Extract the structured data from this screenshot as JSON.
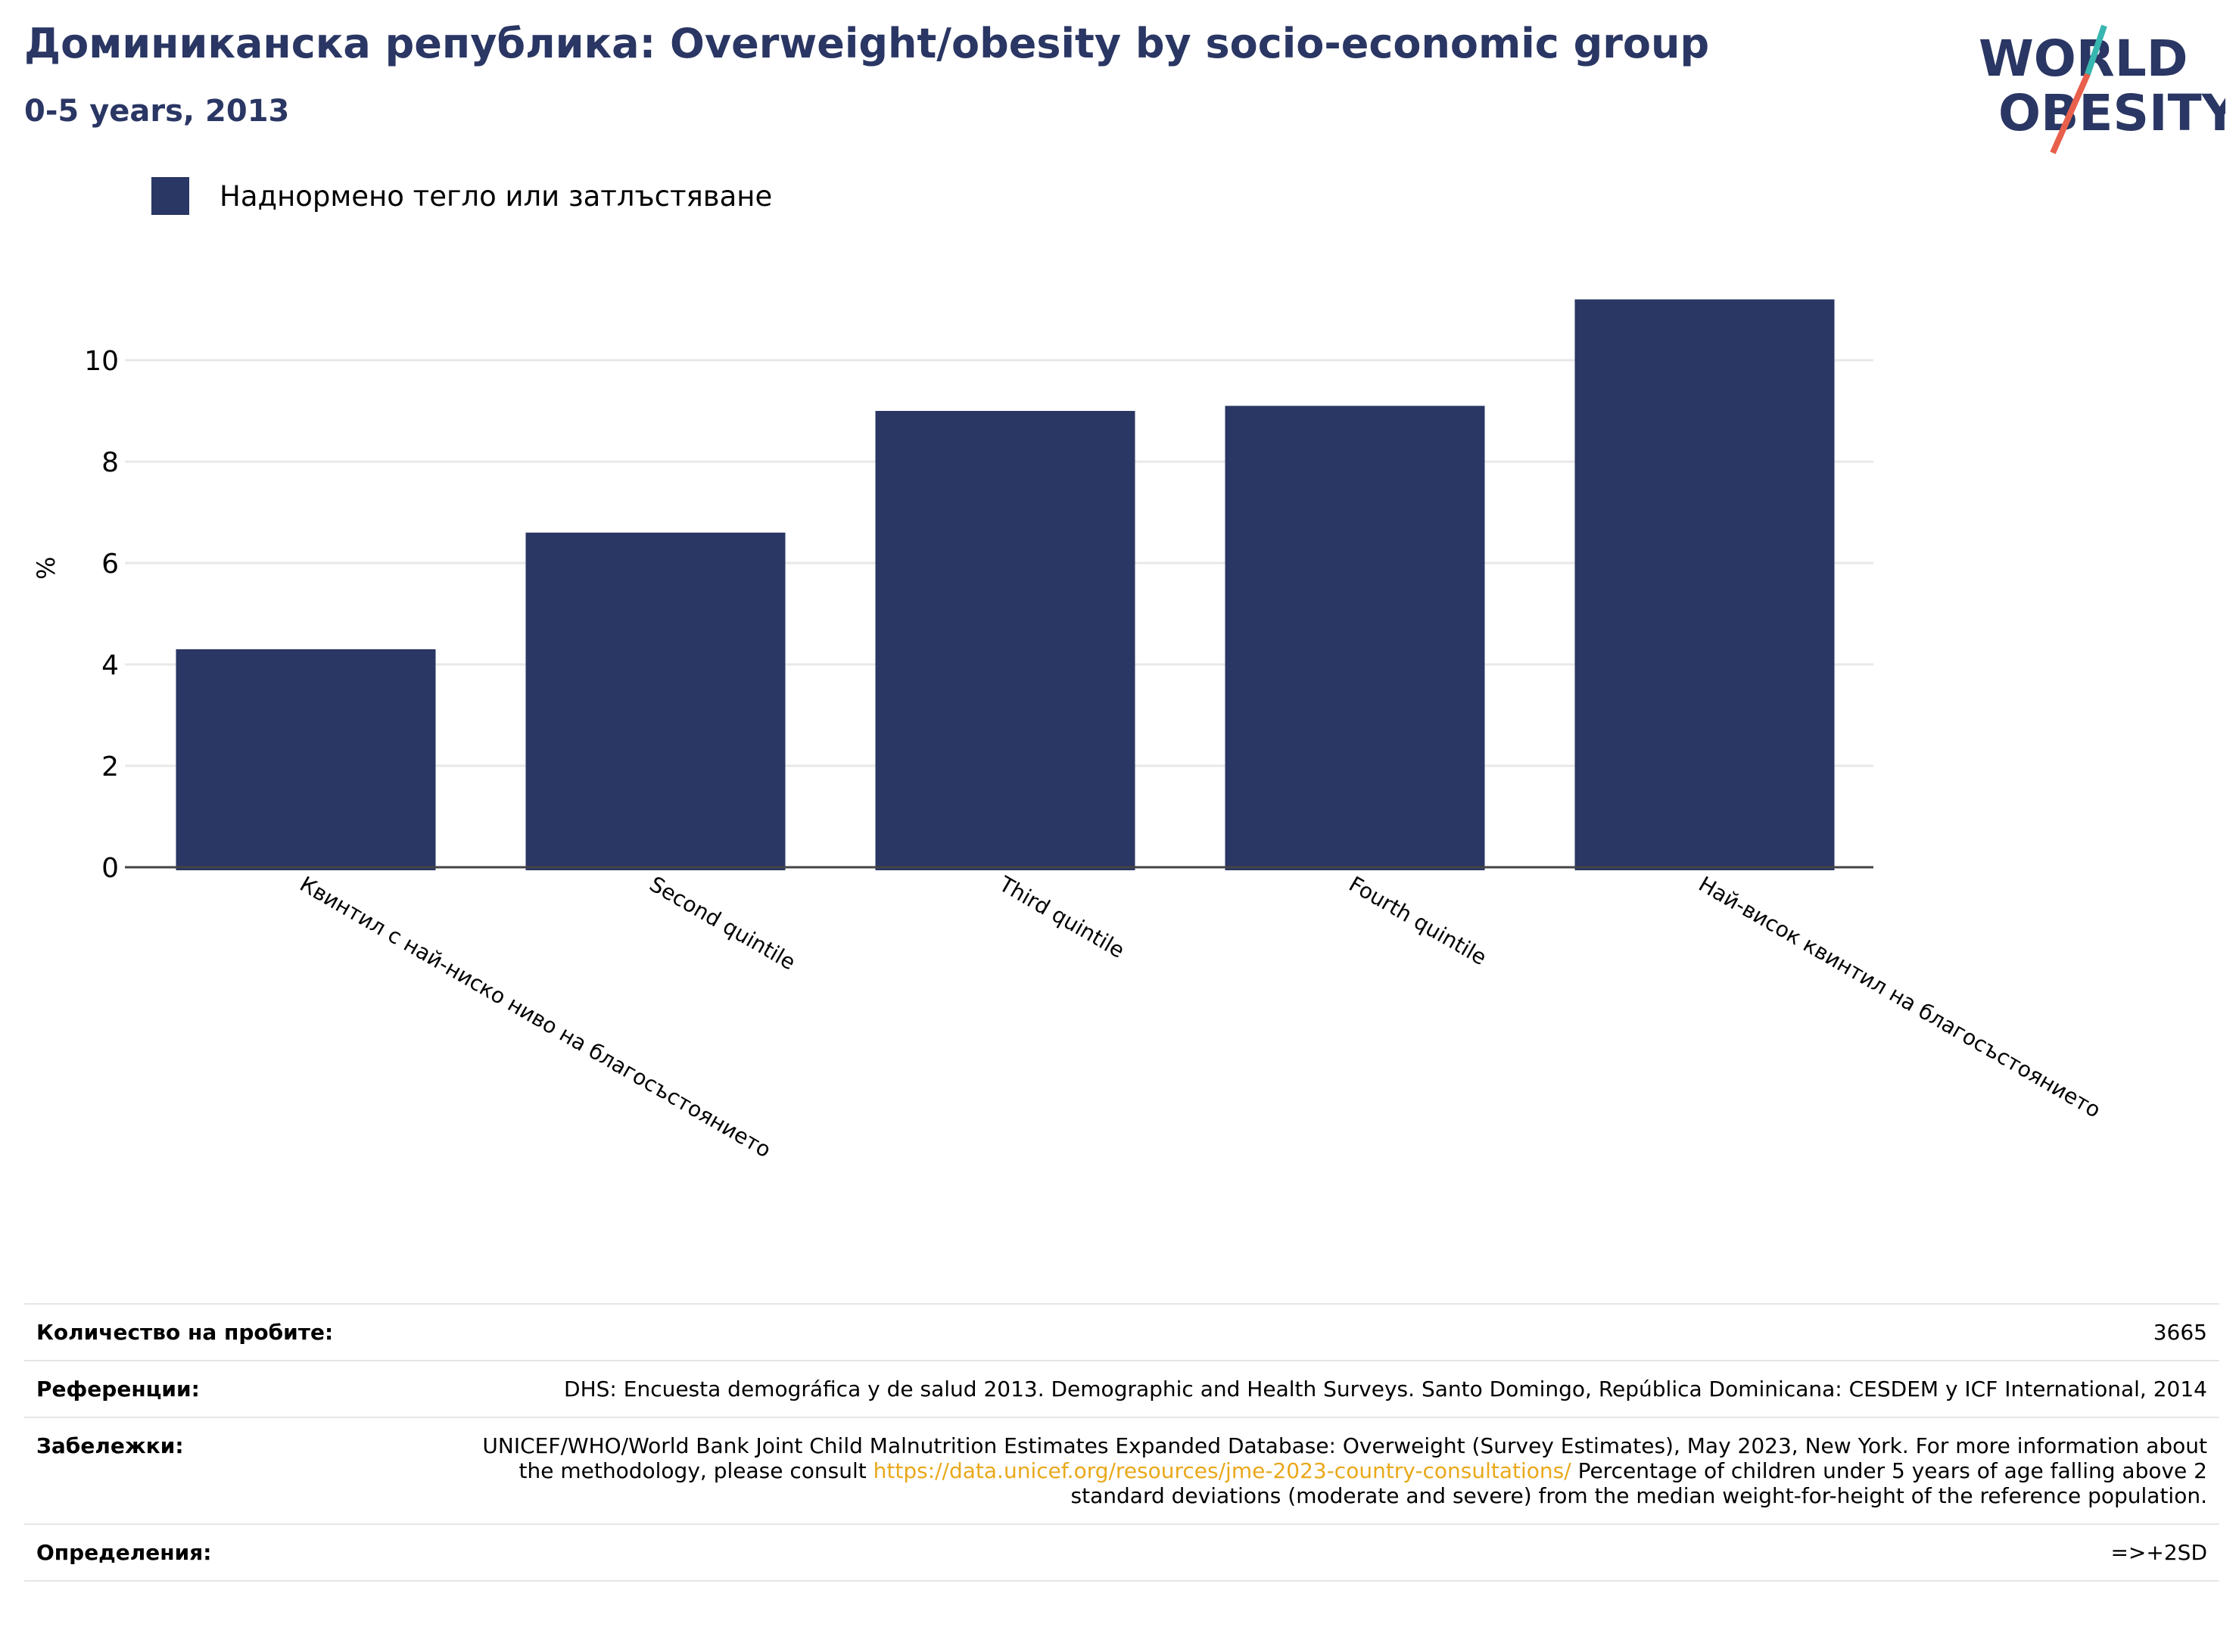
{
  "header": {
    "title": "Доминиканска република: Overweight/obesity by socio-economic group",
    "subtitle": "0-5 years, 2013"
  },
  "logo": {
    "line1": "WORLD",
    "line2": "OBESITY",
    "colors": {
      "text": "#2a3663",
      "slash_top": "#38b6b0",
      "slash_bottom": "#e8604c"
    }
  },
  "legend": {
    "label": "Наднормено тегло или затлъстяване",
    "color": "#2a3663"
  },
  "chart_data": {
    "type": "bar",
    "categories": [
      "Квинтил с най-ниско ниво на благосъстоянието",
      "Second quintile",
      "Third quintile",
      "Fourth quintile",
      "Най-висок квинтил на благосъстоянието"
    ],
    "series": [
      {
        "name": "Наднормено тегло или затлъстяване",
        "values": [
          4.3,
          6.6,
          9.0,
          9.1,
          11.2
        ]
      }
    ],
    "ylabel": "%",
    "xlabel": "",
    "yticks": [
      0,
      2,
      4,
      6,
      8,
      10
    ],
    "ylim": [
      0,
      11.2
    ],
    "grid": true,
    "bar_color": "#2a3663",
    "legend_position": "top-left"
  },
  "info": {
    "rows": [
      {
        "label": "Количество на пробите:",
        "value": "3665"
      },
      {
        "label": "Референции:",
        "value": "DHS: Encuesta demográfica y de salud 2013. Demographic and Health Surveys. Santo Domingo, República Dominicana: CESDEM y ICF International, 2014"
      },
      {
        "label": "Забележки:",
        "value_before": "UNICEF/WHO/World Bank Joint Child Malnutrition Estimates Expanded Database: Overweight (Survey Estimates), May 2023, New York. For more information about the methodology, please consult ",
        "link": "https://data.unicef.org/resources/jme-2023-country-consultations/",
        "value_after": " Percentage of children under 5 years of age falling above 2 standard deviations (moderate and severe) from the median weight-for-height of the reference population."
      },
      {
        "label": "Определения:",
        "value": "=>+2SD"
      }
    ]
  }
}
